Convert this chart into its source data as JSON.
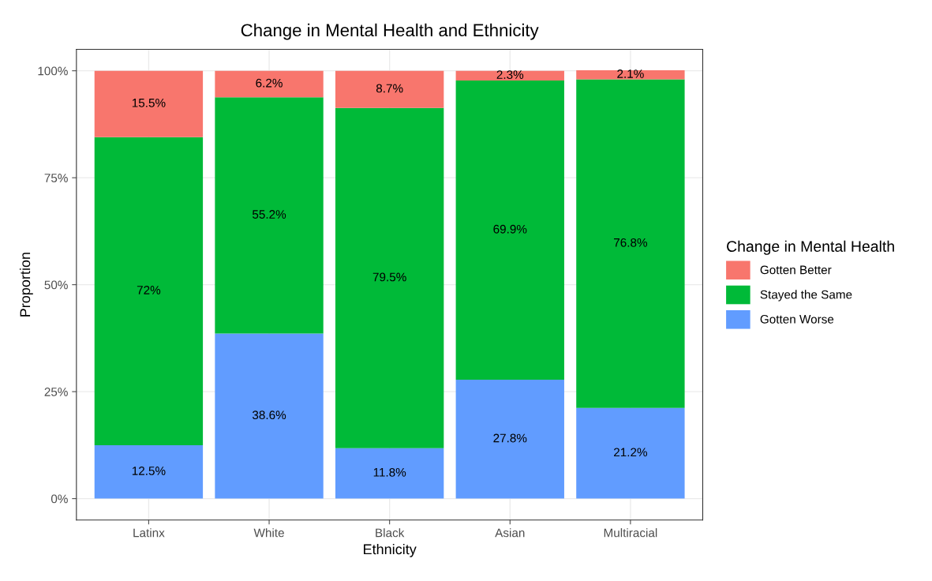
{
  "chart_data": {
    "type": "bar",
    "stacked": true,
    "title": "Change in Mental Health and Ethnicity",
    "xlabel": "Ethnicity",
    "ylabel": "Proportion",
    "legend_title": "Change in Mental Health",
    "legend": "right",
    "grid": true,
    "categories": [
      "Latinx",
      "White",
      "Black",
      "Asian",
      "Multiracial"
    ],
    "ylim": [
      -5,
      105
    ],
    "yticks": [
      {
        "value": 0,
        "label": "0%"
      },
      {
        "value": 25,
        "label": "25%"
      },
      {
        "value": 50,
        "label": "50%"
      },
      {
        "value": 75,
        "label": "75%"
      },
      {
        "value": 100,
        "label": "100%"
      }
    ],
    "series": [
      {
        "name": "Gotten Worse",
        "color": "#619cff",
        "values": [
          12.5,
          38.6,
          11.8,
          27.8,
          21.2
        ],
        "value_labels": [
          "12.5%",
          "38.6%",
          "11.8%",
          "27.8%",
          "21.2%"
        ]
      },
      {
        "name": "Stayed the Same",
        "color": "#00ba38",
        "values": [
          72,
          55.2,
          79.5,
          69.9,
          76.8
        ],
        "value_labels": [
          "72%",
          "55.2%",
          "79.5%",
          "69.9%",
          "76.8%"
        ]
      },
      {
        "name": "Gotten Better",
        "color": "#f8766d",
        "values": [
          15.5,
          6.2,
          8.7,
          2.3,
          2.1
        ],
        "value_labels": [
          "15.5%",
          "6.2%",
          "8.7%",
          "2.3%",
          "2.1%"
        ]
      }
    ]
  }
}
